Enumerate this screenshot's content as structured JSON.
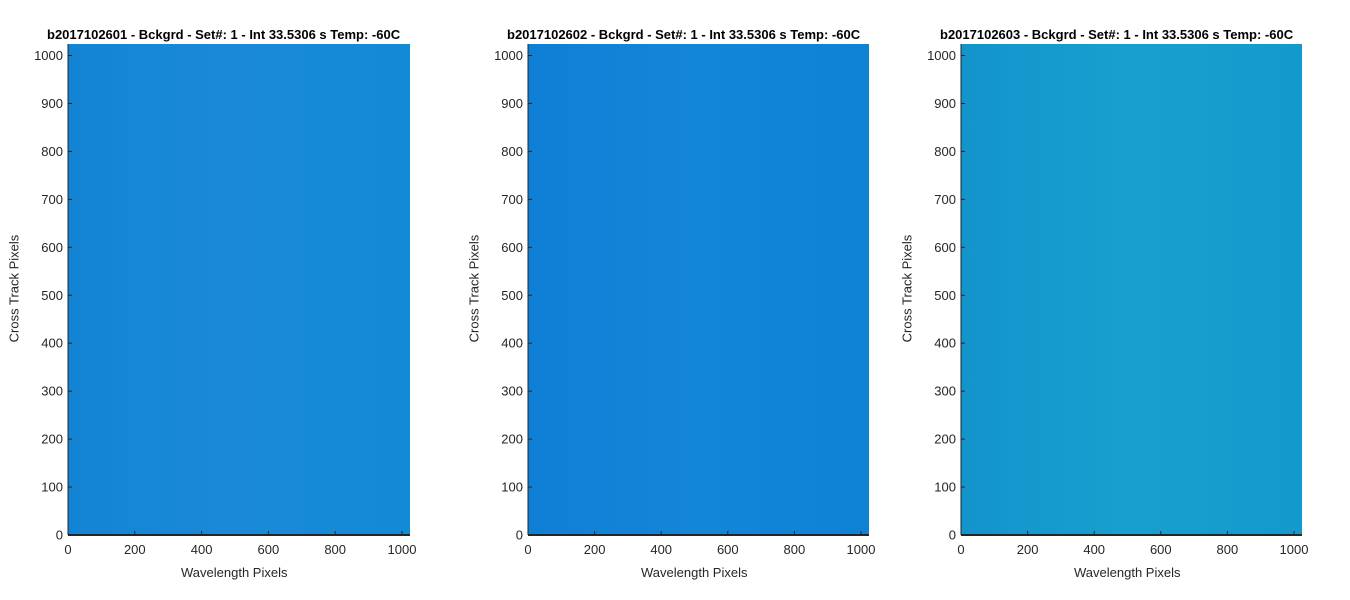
{
  "chart_data": [
    {
      "type": "heatmap",
      "title": "b2017102601 - Bckgrd - Set#: 1 - Int 33.5306 s Temp: -60C",
      "xlabel": "Wavelength Pixels",
      "ylabel": "Cross Track Pixels",
      "xlim": [
        0,
        1024
      ],
      "ylim": [
        0,
        1024
      ],
      "xticks": [
        0,
        200,
        400,
        600,
        800,
        1000
      ],
      "yticks": [
        0,
        100,
        200,
        300,
        400,
        500,
        600,
        700,
        800,
        900,
        1000
      ],
      "grid": false,
      "fill_colors": [
        "#1384d4",
        "#1a8ad8",
        "#138ad6"
      ]
    },
    {
      "type": "heatmap",
      "title": "b2017102602 - Bckgrd - Set#: 1 - Int 33.5306 s Temp: -60C",
      "xlabel": "Wavelength Pixels",
      "ylabel": "Cross Track Pixels",
      "xlim": [
        0,
        1024
      ],
      "ylim": [
        0,
        1024
      ],
      "xticks": [
        0,
        200,
        400,
        600,
        800,
        1000
      ],
      "yticks": [
        0,
        100,
        200,
        300,
        400,
        500,
        600,
        700,
        800,
        900,
        1000
      ],
      "grid": false,
      "fill_colors": [
        "#0f7fd6",
        "#1486d8",
        "#0f82d6"
      ]
    },
    {
      "type": "heatmap",
      "title": "b2017102603 - Bckgrd - Set#: 1 - Int 33.5306 s Temp: -60C",
      "xlabel": "Wavelength Pixels",
      "ylabel": "Cross Track Pixels",
      "xlim": [
        0,
        1024
      ],
      "ylim": [
        0,
        1024
      ],
      "xticks": [
        0,
        200,
        400,
        600,
        800,
        1000
      ],
      "yticks": [
        0,
        100,
        200,
        300,
        400,
        500,
        600,
        700,
        800,
        900,
        1000
      ],
      "grid": false,
      "fill_colors": [
        "#1394cc",
        "#17a0cf",
        "#139acd"
      ]
    }
  ]
}
